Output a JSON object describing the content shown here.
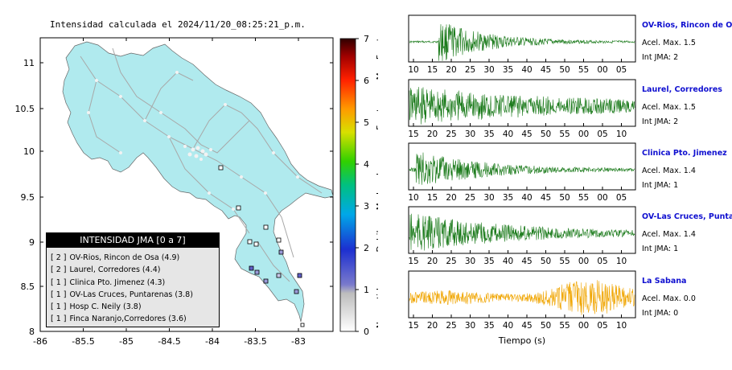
{
  "header": {
    "title": "Intensidad calculada el 2024/11/20_08:25:21_p.m."
  },
  "map": {
    "x_ticks": [
      "-86",
      "-85.5",
      "-85",
      "-84.5",
      "-84",
      "-83.5",
      "-83"
    ],
    "y_ticks": [
      "11",
      "10.5",
      "10",
      "9.5",
      "9",
      "8.5",
      "8"
    ]
  },
  "colorbar": {
    "ticks": [
      "0",
      "1",
      "2",
      "3",
      "4",
      "5",
      "6",
      "7"
    ],
    "labels": [
      "No sentido",
      "Debil",
      "Moderado",
      "Fuerte",
      "Muy Fuerte"
    ]
  },
  "legend": {
    "title": "INTENSIDAD JMA [0 a 7]",
    "rows": [
      {
        "badge": "[ 2 ]",
        "text": "OV-Rios, Rincon de Osa (4.9)"
      },
      {
        "badge": "[ 2 ]",
        "text": "Laurel, Corredores (4.4)"
      },
      {
        "badge": "[ 1 ]",
        "text": "Clinica Pto. Jimenez (4.3)"
      },
      {
        "badge": "[ 1 ]",
        "text": "OV-Las Cruces, Puntarenas (3.8)"
      },
      {
        "badge": "[ 1 ]",
        "text": "Hosp C. Neily (3.8)"
      },
      {
        "badge": "[ 1 ]",
        "text": "Finca Naranjo,Corredores (3.6)"
      }
    ]
  },
  "traces": [
    {
      "station": "OV-Rios, Rincon de Os",
      "acel": "Acel. Max. 1.5",
      "int": "Int JMA: 2",
      "ticks": [
        "10",
        "15",
        "20",
        "25",
        "30",
        "35",
        "40",
        "45",
        "50",
        "55",
        "00",
        "05"
      ],
      "color": "#1a7a1a"
    },
    {
      "station": "Laurel, Corredores",
      "acel": "Acel. Max. 1.5",
      "int": "Int JMA: 2",
      "ticks": [
        "15",
        "20",
        "25",
        "30",
        "35",
        "40",
        "45",
        "50",
        "55",
        "00",
        "05",
        "10"
      ],
      "color": "#1a7a1a"
    },
    {
      "station": "Clinica Pto. Jimenez",
      "acel": "Acel. Max. 1.4",
      "int": "Int JMA: 1",
      "ticks": [
        "10",
        "15",
        "20",
        "25",
        "30",
        "35",
        "40",
        "45",
        "50",
        "55",
        "00",
        "05"
      ],
      "color": "#1a7a1a"
    },
    {
      "station": "OV-Las Cruces, Puntar",
      "acel": "Acel. Max. 1.4",
      "int": "Int JMA: 1",
      "ticks": [
        "15",
        "20",
        "25",
        "30",
        "35",
        "40",
        "45",
        "50",
        "55",
        "00",
        "05",
        "10"
      ],
      "color": "#1a7a1a"
    },
    {
      "station": "La Sabana",
      "acel": "Acel. Max. 0.0",
      "int": "Int JMA: 0",
      "ticks": [
        "15",
        "20",
        "25",
        "30",
        "35",
        "40",
        "45",
        "50",
        "55",
        "00",
        "05",
        "10"
      ],
      "color": "#f0a500"
    }
  ],
  "time_axis_label": "Tiempo (s)"
}
